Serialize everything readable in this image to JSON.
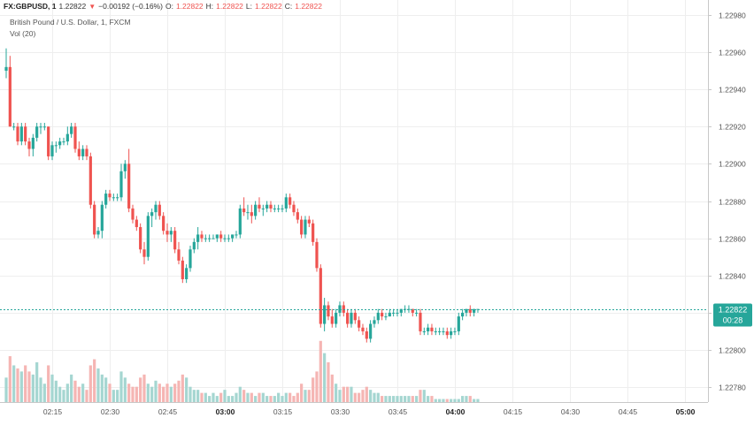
{
  "header": {
    "symbol": "FX:GBPUSD, 1",
    "last": "1.22822",
    "change": "−0.00192 (−0.16%)",
    "open_label": "O:",
    "open": "1.22822",
    "high_label": "H:",
    "high": "1.22822",
    "low_label": "L:",
    "low": "1.22822",
    "close_label": "C:",
    "close": "1.22822",
    "down_triangle": "▼"
  },
  "legend": {
    "title": "British Pound / U.S. Dollar, 1, FXCM",
    "volume": "Vol (20)"
  },
  "price_badge": {
    "price": "1.22822",
    "countdown": "00:28"
  },
  "colors": {
    "up": "#26a69a",
    "down": "#ef5350",
    "up_volume": "#a5d6d1",
    "down_volume": "#f5b5b3",
    "grid": "#eeeeee",
    "axis_text": "#555555",
    "price_line": "#26a69a"
  },
  "chart_data": {
    "type": "candlestick",
    "symbol": "GBPUSD",
    "timeframe": "1",
    "ylim": [
      1.22772,
      1.22988
    ],
    "y_ticks": [
      "1.22980",
      "1.22960",
      "1.22940",
      "1.22920",
      "1.22900",
      "1.22880",
      "1.22860",
      "1.22840",
      "1.22820",
      "1.22800",
      "1.22780"
    ],
    "y_tick_values": [
      1.2298,
      1.2296,
      1.2294,
      1.2292,
      1.229,
      1.2288,
      1.2286,
      1.2284,
      1.2282,
      1.228,
      1.2278
    ],
    "x_ticks": [
      "02:15",
      "02:30",
      "02:45",
      "03:00",
      "03:15",
      "03:30",
      "03:45",
      "04:00",
      "04:15",
      "04:30",
      "04:45",
      "05:00"
    ],
    "x_tick_minutes": [
      135,
      150,
      165,
      180,
      195,
      210,
      225,
      240,
      255,
      270,
      285,
      300
    ],
    "bold_ticks": [
      "03:00",
      "04:00",
      "05:00"
    ],
    "first_bar_minute": 123,
    "current_price": 1.22822,
    "candles": [
      [
        1.2295,
        1.22962,
        1.22946,
        1.22952
      ],
      [
        1.22952,
        1.22958,
        1.2292,
        1.2292
      ],
      [
        1.2292,
        1.22922,
        1.22918,
        1.2292
      ],
      [
        1.2292,
        1.22922,
        1.2291,
        1.22912
      ],
      [
        1.22912,
        1.22922,
        1.2291,
        1.2292
      ],
      [
        1.2292,
        1.22922,
        1.2291,
        1.22912
      ],
      [
        1.22912,
        1.22914,
        1.22904,
        1.22908
      ],
      [
        1.22908,
        1.22916,
        1.22904,
        1.22914
      ],
      [
        1.22914,
        1.22922,
        1.22912,
        1.2292
      ],
      [
        1.2292,
        1.22922,
        1.22916,
        1.2292
      ],
      [
        1.2292,
        1.22922,
        1.22918,
        1.2292
      ],
      [
        1.2292,
        1.2292,
        1.22902,
        1.22904
      ],
      [
        1.22904,
        1.22912,
        1.22902,
        1.2291
      ],
      [
        1.2291,
        1.22912,
        1.22906,
        1.2291
      ],
      [
        1.2291,
        1.22914,
        1.22908,
        1.22912
      ],
      [
        1.22912,
        1.22914,
        1.2291,
        1.22912
      ],
      [
        1.22912,
        1.2292,
        1.2291,
        1.22916
      ],
      [
        1.22916,
        1.22922,
        1.22914,
        1.2292
      ],
      [
        1.2292,
        1.22922,
        1.22906,
        1.22908
      ],
      [
        1.22908,
        1.22912,
        1.22902,
        1.22904
      ],
      [
        1.22904,
        1.2291,
        1.22902,
        1.22908
      ],
      [
        1.22908,
        1.2291,
        1.22902,
        1.22904
      ],
      [
        1.22904,
        1.22906,
        1.22876,
        1.22878
      ],
      [
        1.22878,
        1.2288,
        1.2286,
        1.22862
      ],
      [
        1.22862,
        1.22866,
        1.2286,
        1.22864
      ],
      [
        1.22864,
        1.2288,
        1.2286,
        1.22878
      ],
      [
        1.22878,
        1.22886,
        1.22876,
        1.22884
      ],
      [
        1.22884,
        1.22886,
        1.2288,
        1.22882
      ],
      [
        1.22882,
        1.22884,
        1.2288,
        1.22882
      ],
      [
        1.22882,
        1.22884,
        1.2288,
        1.22882
      ],
      [
        1.22882,
        1.229,
        1.2288,
        1.22896
      ],
      [
        1.22896,
        1.22902,
        1.22892,
        1.229
      ],
      [
        1.229,
        1.22908,
        1.22874,
        1.22876
      ],
      [
        1.22876,
        1.22878,
        1.22868,
        1.2287
      ],
      [
        1.2287,
        1.22872,
        1.22864,
        1.22866
      ],
      [
        1.22866,
        1.22868,
        1.22852,
        1.22854
      ],
      [
        1.22854,
        1.22858,
        1.22846,
        1.2285
      ],
      [
        1.2285,
        1.22874,
        1.22848,
        1.22872
      ],
      [
        1.22872,
        1.22876,
        1.22866,
        1.22874
      ],
      [
        1.22874,
        1.2288,
        1.2287,
        1.22878
      ],
      [
        1.22878,
        1.2288,
        1.2287,
        1.22872
      ],
      [
        1.22872,
        1.22874,
        1.22862,
        1.22864
      ],
      [
        1.22864,
        1.22868,
        1.22858,
        1.22862
      ],
      [
        1.22862,
        1.22866,
        1.22858,
        1.22864
      ],
      [
        1.22864,
        1.22866,
        1.22852,
        1.22854
      ],
      [
        1.22854,
        1.22858,
        1.22846,
        1.22848
      ],
      [
        1.22848,
        1.2285,
        1.22836,
        1.22838
      ],
      [
        1.22838,
        1.22846,
        1.22836,
        1.22844
      ],
      [
        1.22844,
        1.22856,
        1.22842,
        1.22854
      ],
      [
        1.22854,
        1.2286,
        1.22852,
        1.22858
      ],
      [
        1.22858,
        1.22866,
        1.22854,
        1.22862
      ],
      [
        1.22862,
        1.22864,
        1.22858,
        1.2286
      ],
      [
        1.2286,
        1.22862,
        1.22858,
        1.2286
      ],
      [
        1.2286,
        1.22862,
        1.22858,
        1.2286
      ],
      [
        1.2286,
        1.22862,
        1.2286,
        1.2286
      ],
      [
        1.2286,
        1.22862,
        1.22858,
        1.22862
      ],
      [
        1.22862,
        1.22864,
        1.22858,
        1.2286
      ],
      [
        1.2286,
        1.22862,
        1.22858,
        1.2286
      ],
      [
        1.2286,
        1.22862,
        1.22858,
        1.2286
      ],
      [
        1.2286,
        1.22862,
        1.22858,
        1.22862
      ],
      [
        1.22862,
        1.22864,
        1.2286,
        1.22862
      ],
      [
        1.22862,
        1.22878,
        1.2286,
        1.22876
      ],
      [
        1.22876,
        1.22882,
        1.22872,
        1.22874
      ],
      [
        1.22874,
        1.22878,
        1.2287,
        1.22874
      ],
      [
        1.22874,
        1.22878,
        1.22868,
        1.22872
      ],
      [
        1.22872,
        1.2288,
        1.2287,
        1.22878
      ],
      [
        1.22878,
        1.22882,
        1.22874,
        1.22876
      ],
      [
        1.22876,
        1.22878,
        1.22872,
        1.22876
      ],
      [
        1.22876,
        1.2288,
        1.22874,
        1.22878
      ],
      [
        1.22878,
        1.2288,
        1.22874,
        1.22876
      ],
      [
        1.22876,
        1.22878,
        1.22874,
        1.22876
      ],
      [
        1.22876,
        1.22878,
        1.22874,
        1.22876
      ],
      [
        1.22876,
        1.22878,
        1.22874,
        1.22876
      ],
      [
        1.22876,
        1.22884,
        1.22874,
        1.22882
      ],
      [
        1.22882,
        1.22884,
        1.22876,
        1.22878
      ],
      [
        1.22878,
        1.2288,
        1.22872,
        1.22874
      ],
      [
        1.22874,
        1.22876,
        1.22868,
        1.2287
      ],
      [
        1.2287,
        1.22872,
        1.2286,
        1.22862
      ],
      [
        1.22862,
        1.22872,
        1.2286,
        1.2287
      ],
      [
        1.2287,
        1.22872,
        1.22866,
        1.22868
      ],
      [
        1.22868,
        1.2287,
        1.22856,
        1.22858
      ],
      [
        1.22858,
        1.2286,
        1.22842,
        1.22844
      ],
      [
        1.22844,
        1.22846,
        1.22812,
        1.22814
      ],
      [
        1.22814,
        1.22828,
        1.2281,
        1.22824
      ],
      [
        1.22824,
        1.22826,
        1.22816,
        1.22818
      ],
      [
        1.22818,
        1.22822,
        1.22812,
        1.22814
      ],
      [
        1.22814,
        1.22822,
        1.22812,
        1.2282
      ],
      [
        1.2282,
        1.22826,
        1.22818,
        1.22824
      ],
      [
        1.22824,
        1.22826,
        1.22818,
        1.2282
      ],
      [
        1.2282,
        1.22822,
        1.22812,
        1.22814
      ],
      [
        1.22814,
        1.22822,
        1.22812,
        1.2282
      ],
      [
        1.2282,
        1.22822,
        1.22814,
        1.22816
      ],
      [
        1.22816,
        1.22818,
        1.2281,
        1.22812
      ],
      [
        1.22812,
        1.22814,
        1.22808,
        1.2281
      ],
      [
        1.2281,
        1.22812,
        1.22804,
        1.22806
      ],
      [
        1.22806,
        1.22816,
        1.22804,
        1.22814
      ],
      [
        1.22814,
        1.22818,
        1.22812,
        1.22816
      ],
      [
        1.22816,
        1.22822,
        1.22814,
        1.2282
      ],
      [
        1.2282,
        1.22822,
        1.22816,
        1.22818
      ],
      [
        1.22818,
        1.2282,
        1.22816,
        1.22818
      ],
      [
        1.22818,
        1.22822,
        1.22818,
        1.2282
      ],
      [
        1.2282,
        1.22822,
        1.22818,
        1.2282
      ],
      [
        1.2282,
        1.22822,
        1.22818,
        1.2282
      ],
      [
        1.2282,
        1.22822,
        1.22818,
        1.22822
      ],
      [
        1.22822,
        1.22824,
        1.2282,
        1.22822
      ],
      [
        1.22822,
        1.22824,
        1.2282,
        1.22822
      ],
      [
        1.22822,
        1.22822,
        1.22818,
        1.2282
      ],
      [
        1.2282,
        1.22822,
        1.22818,
        1.2282
      ],
      [
        1.2282,
        1.22822,
        1.22808,
        1.2281
      ],
      [
        1.2281,
        1.22812,
        1.22808,
        1.2281
      ],
      [
        1.2281,
        1.22814,
        1.22808,
        1.22812
      ],
      [
        1.22812,
        1.22814,
        1.22808,
        1.2281
      ],
      [
        1.2281,
        1.22812,
        1.22808,
        1.2281
      ],
      [
        1.2281,
        1.22812,
        1.22808,
        1.2281
      ],
      [
        1.2281,
        1.22812,
        1.22808,
        1.2281
      ],
      [
        1.2281,
        1.22812,
        1.22806,
        1.22808
      ],
      [
        1.22808,
        1.22812,
        1.22806,
        1.2281
      ],
      [
        1.2281,
        1.22812,
        1.22808,
        1.2281
      ],
      [
        1.2281,
        1.2282,
        1.22808,
        1.22818
      ],
      [
        1.22818,
        1.22822,
        1.22816,
        1.2282
      ],
      [
        1.2282,
        1.22822,
        1.22818,
        1.22822
      ],
      [
        1.22822,
        1.22824,
        1.22818,
        1.2282
      ],
      [
        1.2282,
        1.22822,
        1.22818,
        1.22822
      ],
      [
        1.22822,
        1.22822,
        1.2282,
        1.22822
      ]
    ],
    "volume": [
      8,
      15,
      12,
      11,
      10,
      12,
      10,
      9,
      13,
      8,
      6,
      12,
      9,
      7,
      5,
      4,
      6,
      9,
      7,
      5,
      6,
      4,
      12,
      14,
      11,
      9,
      8,
      6,
      4,
      4,
      10,
      8,
      6,
      5,
      5,
      8,
      9,
      6,
      5,
      7,
      6,
      5,
      6,
      5,
      6,
      7,
      9,
      8,
      5,
      4,
      4,
      3,
      3,
      2,
      3,
      2,
      3,
      4,
      2,
      2,
      3,
      5,
      4,
      3,
      3,
      2,
      3,
      3,
      2,
      2,
      2,
      3,
      2,
      3,
      3,
      2,
      3,
      6,
      4,
      4,
      8,
      10,
      20,
      16,
      13,
      9,
      6,
      4,
      5,
      5,
      5,
      3,
      3,
      4,
      5,
      4,
      3,
      3,
      2,
      2,
      2,
      2,
      2,
      2,
      2,
      2,
      2,
      2,
      4,
      4,
      2,
      2,
      1,
      1,
      1,
      1,
      1,
      1,
      1,
      2,
      2,
      2,
      1,
      1,
      1
    ],
    "volume_max": 26
  }
}
